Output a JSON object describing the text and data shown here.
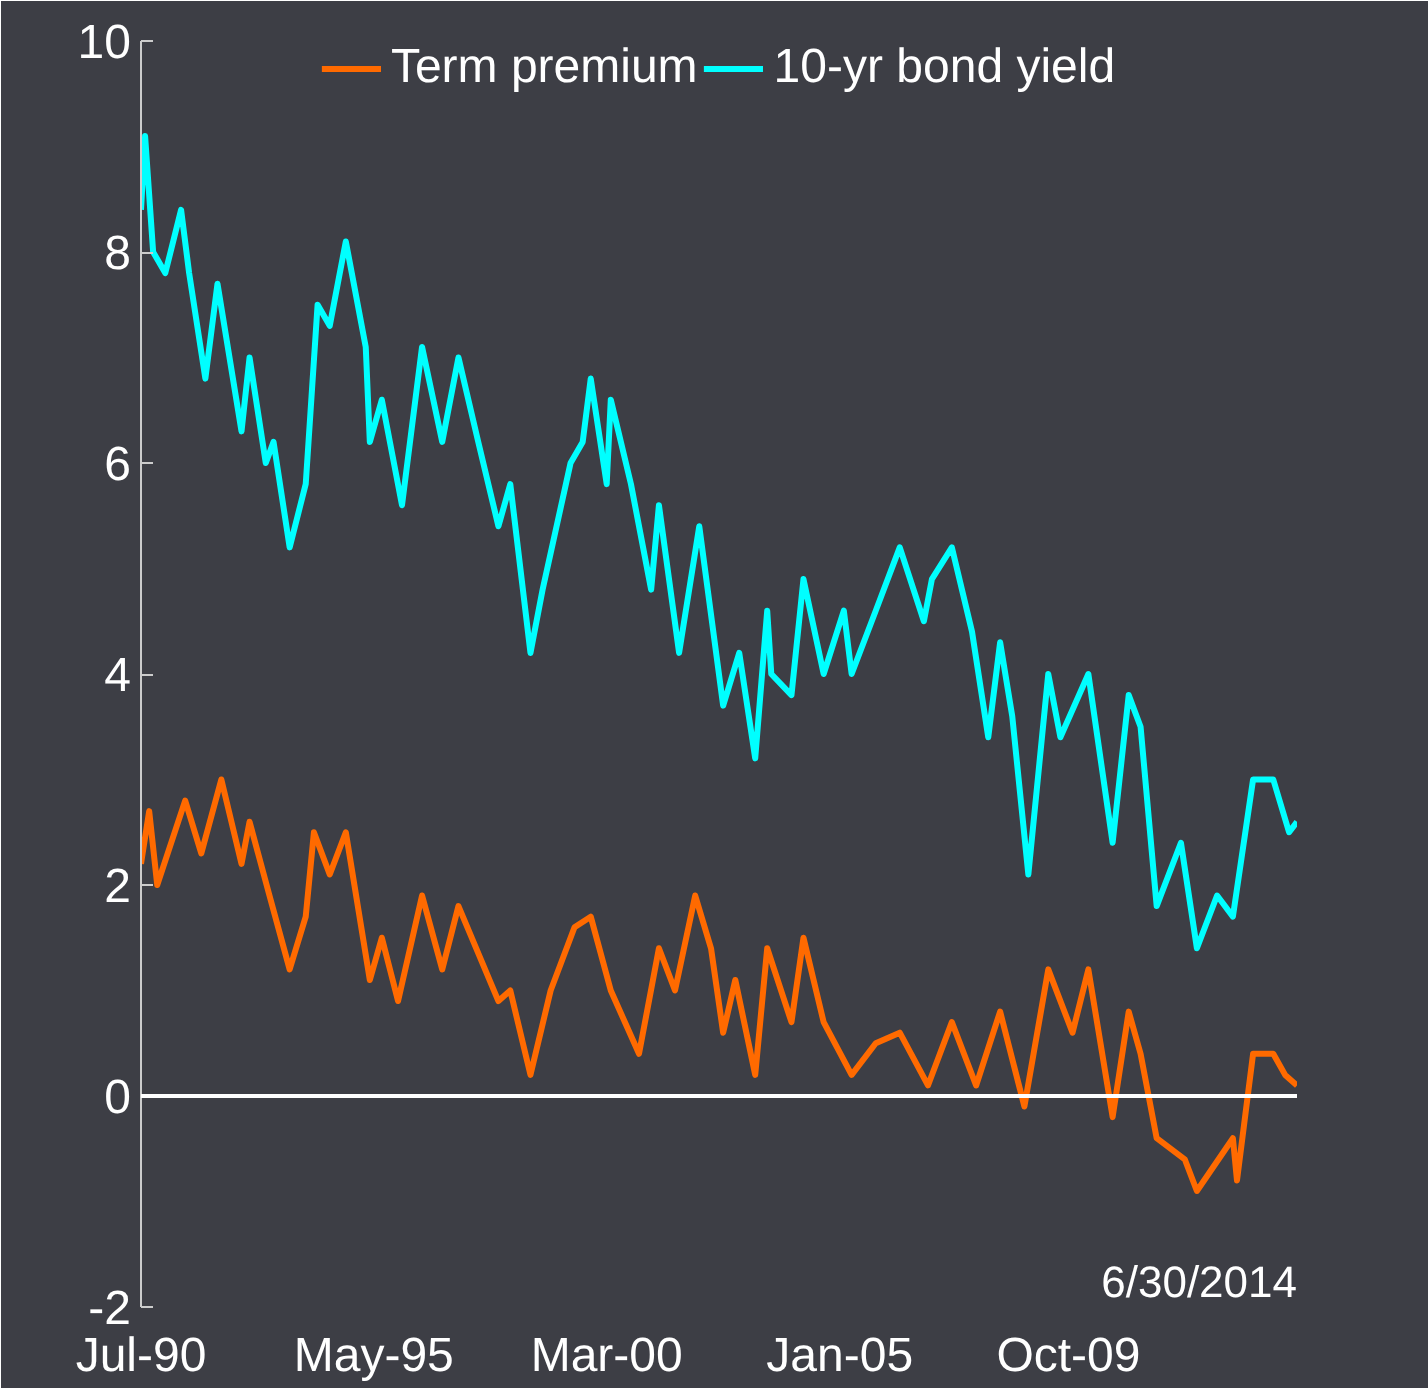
{
  "chart_data": {
    "type": "line",
    "legend": "top",
    "grid": false,
    "series": [
      {
        "name": "Term premium",
        "color": "#ff6a00",
        "x": [
          "1990-07",
          "1990-09",
          "1990-11",
          "1991-06",
          "1991-10",
          "1992-03",
          "1992-08",
          "1992-10",
          "1993-03",
          "1993-08",
          "1993-12",
          "1994-02",
          "1994-06",
          "1994-10",
          "1995-04",
          "1995-07",
          "1995-11",
          "1996-05",
          "1996-10",
          "1997-02",
          "1997-12",
          "1998-03",
          "1998-08",
          "1999-01",
          "1999-07",
          "1999-11",
          "2000-04",
          "2000-11",
          "2001-04",
          "2001-08",
          "2002-01",
          "2002-05",
          "2002-08",
          "2002-11",
          "2003-04",
          "2003-07",
          "2004-01",
          "2004-04",
          "2004-09",
          "2005-04",
          "2005-10",
          "2006-04",
          "2006-11",
          "2007-05",
          "2007-11",
          "2008-05",
          "2008-11",
          "2009-05",
          "2009-11",
          "2010-03",
          "2010-09",
          "2011-01",
          "2011-04",
          "2011-08",
          "2012-03",
          "2012-06",
          "2013-03",
          "2013-04",
          "2013-08",
          "2014-01",
          "2014-04",
          "2014-06-30"
        ],
        "values": [
          2.2,
          2.7,
          2.0,
          2.8,
          2.3,
          3.0,
          2.2,
          2.6,
          1.9,
          1.2,
          1.7,
          2.5,
          2.1,
          2.5,
          1.1,
          1.5,
          0.9,
          1.9,
          1.2,
          1.8,
          0.9,
          1.0,
          0.2,
          1.0,
          1.6,
          1.7,
          1.0,
          0.4,
          1.4,
          1.0,
          1.9,
          1.4,
          0.6,
          1.1,
          0.2,
          1.4,
          0.7,
          1.5,
          0.7,
          0.2,
          0.5,
          0.6,
          0.1,
          0.7,
          0.1,
          0.8,
          -0.1,
          1.2,
          0.6,
          1.2,
          -0.2,
          0.8,
          0.4,
          -0.4,
          -0.6,
          -0.9,
          -0.4,
          -0.8,
          0.4,
          0.4,
          0.2,
          0.1
        ]
      },
      {
        "name": "10-yr bond yield",
        "color": "#00ffff",
        "x": [
          "1990-07",
          "1990-08",
          "1990-10",
          "1991-01",
          "1991-05",
          "1991-07",
          "1991-11",
          "1992-02",
          "1992-08",
          "1992-10",
          "1993-02",
          "1993-04",
          "1993-08",
          "1993-12",
          "1994-03",
          "1994-06",
          "1994-10",
          "1995-03",
          "1995-04",
          "1995-07",
          "1995-12",
          "1996-05",
          "1996-10",
          "1997-02",
          "1997-07",
          "1997-12",
          "1998-03",
          "1998-08",
          "1998-11",
          "1999-06",
          "1999-09",
          "1999-11",
          "2000-03",
          "2000-04",
          "2000-09",
          "2001-02",
          "2001-04",
          "2001-09",
          "2002-02",
          "2002-08",
          "2002-12",
          "2003-04",
          "2003-07",
          "2003-08",
          "2004-01",
          "2004-04",
          "2004-09",
          "2005-02",
          "2005-04",
          "2005-10",
          "2006-04",
          "2006-10",
          "2006-12",
          "2007-05",
          "2007-10",
          "2008-02",
          "2008-05",
          "2008-08",
          "2008-12",
          "2009-05",
          "2009-08",
          "2010-03",
          "2010-09",
          "2011-01",
          "2011-04",
          "2011-08",
          "2012-02",
          "2012-06",
          "2012-11",
          "2013-03",
          "2013-08",
          "2014-01",
          "2014-05",
          "2014-06-30"
        ],
        "values": [
          8.4,
          9.1,
          8.0,
          7.8,
          8.4,
          7.8,
          6.8,
          7.7,
          6.3,
          7.0,
          6.0,
          6.2,
          5.2,
          5.8,
          7.5,
          7.3,
          8.1,
          7.1,
          6.2,
          6.6,
          5.6,
          7.1,
          6.2,
          7.0,
          6.2,
          5.4,
          5.8,
          4.2,
          4.8,
          6.0,
          6.2,
          6.8,
          5.8,
          6.6,
          5.8,
          4.8,
          5.6,
          4.2,
          5.4,
          3.7,
          4.2,
          3.2,
          4.6,
          4.0,
          3.8,
          4.9,
          4.0,
          4.6,
          4.0,
          4.6,
          5.2,
          4.5,
          4.9,
          5.2,
          4.4,
          3.4,
          4.3,
          3.6,
          2.1,
          4.0,
          3.4,
          4.0,
          2.4,
          3.8,
          3.5,
          1.8,
          2.4,
          1.4,
          1.9,
          1.7,
          3.0,
          3.0,
          2.5,
          2.6
        ]
      }
    ],
    "xlim": [
      "1990-07",
      "2014-06-30"
    ],
    "xticks": [
      {
        "value": "1990-07",
        "label": "Jul-90"
      },
      {
        "value": "1995-05",
        "label": "May-95"
      },
      {
        "value": "2000-03",
        "label": "Mar-00"
      },
      {
        "value": "2005-01",
        "label": "Jan-05"
      },
      {
        "value": "2009-10",
        "label": "Oct-09"
      }
    ],
    "ylim": [
      -2,
      10
    ],
    "yticks": [
      -2,
      0,
      2,
      4,
      6,
      8,
      10
    ],
    "ref_lines": [
      {
        "axis": "y",
        "value": 0,
        "color": "#ffffff"
      }
    ],
    "annotations": [
      "6/30/2014"
    ]
  }
}
